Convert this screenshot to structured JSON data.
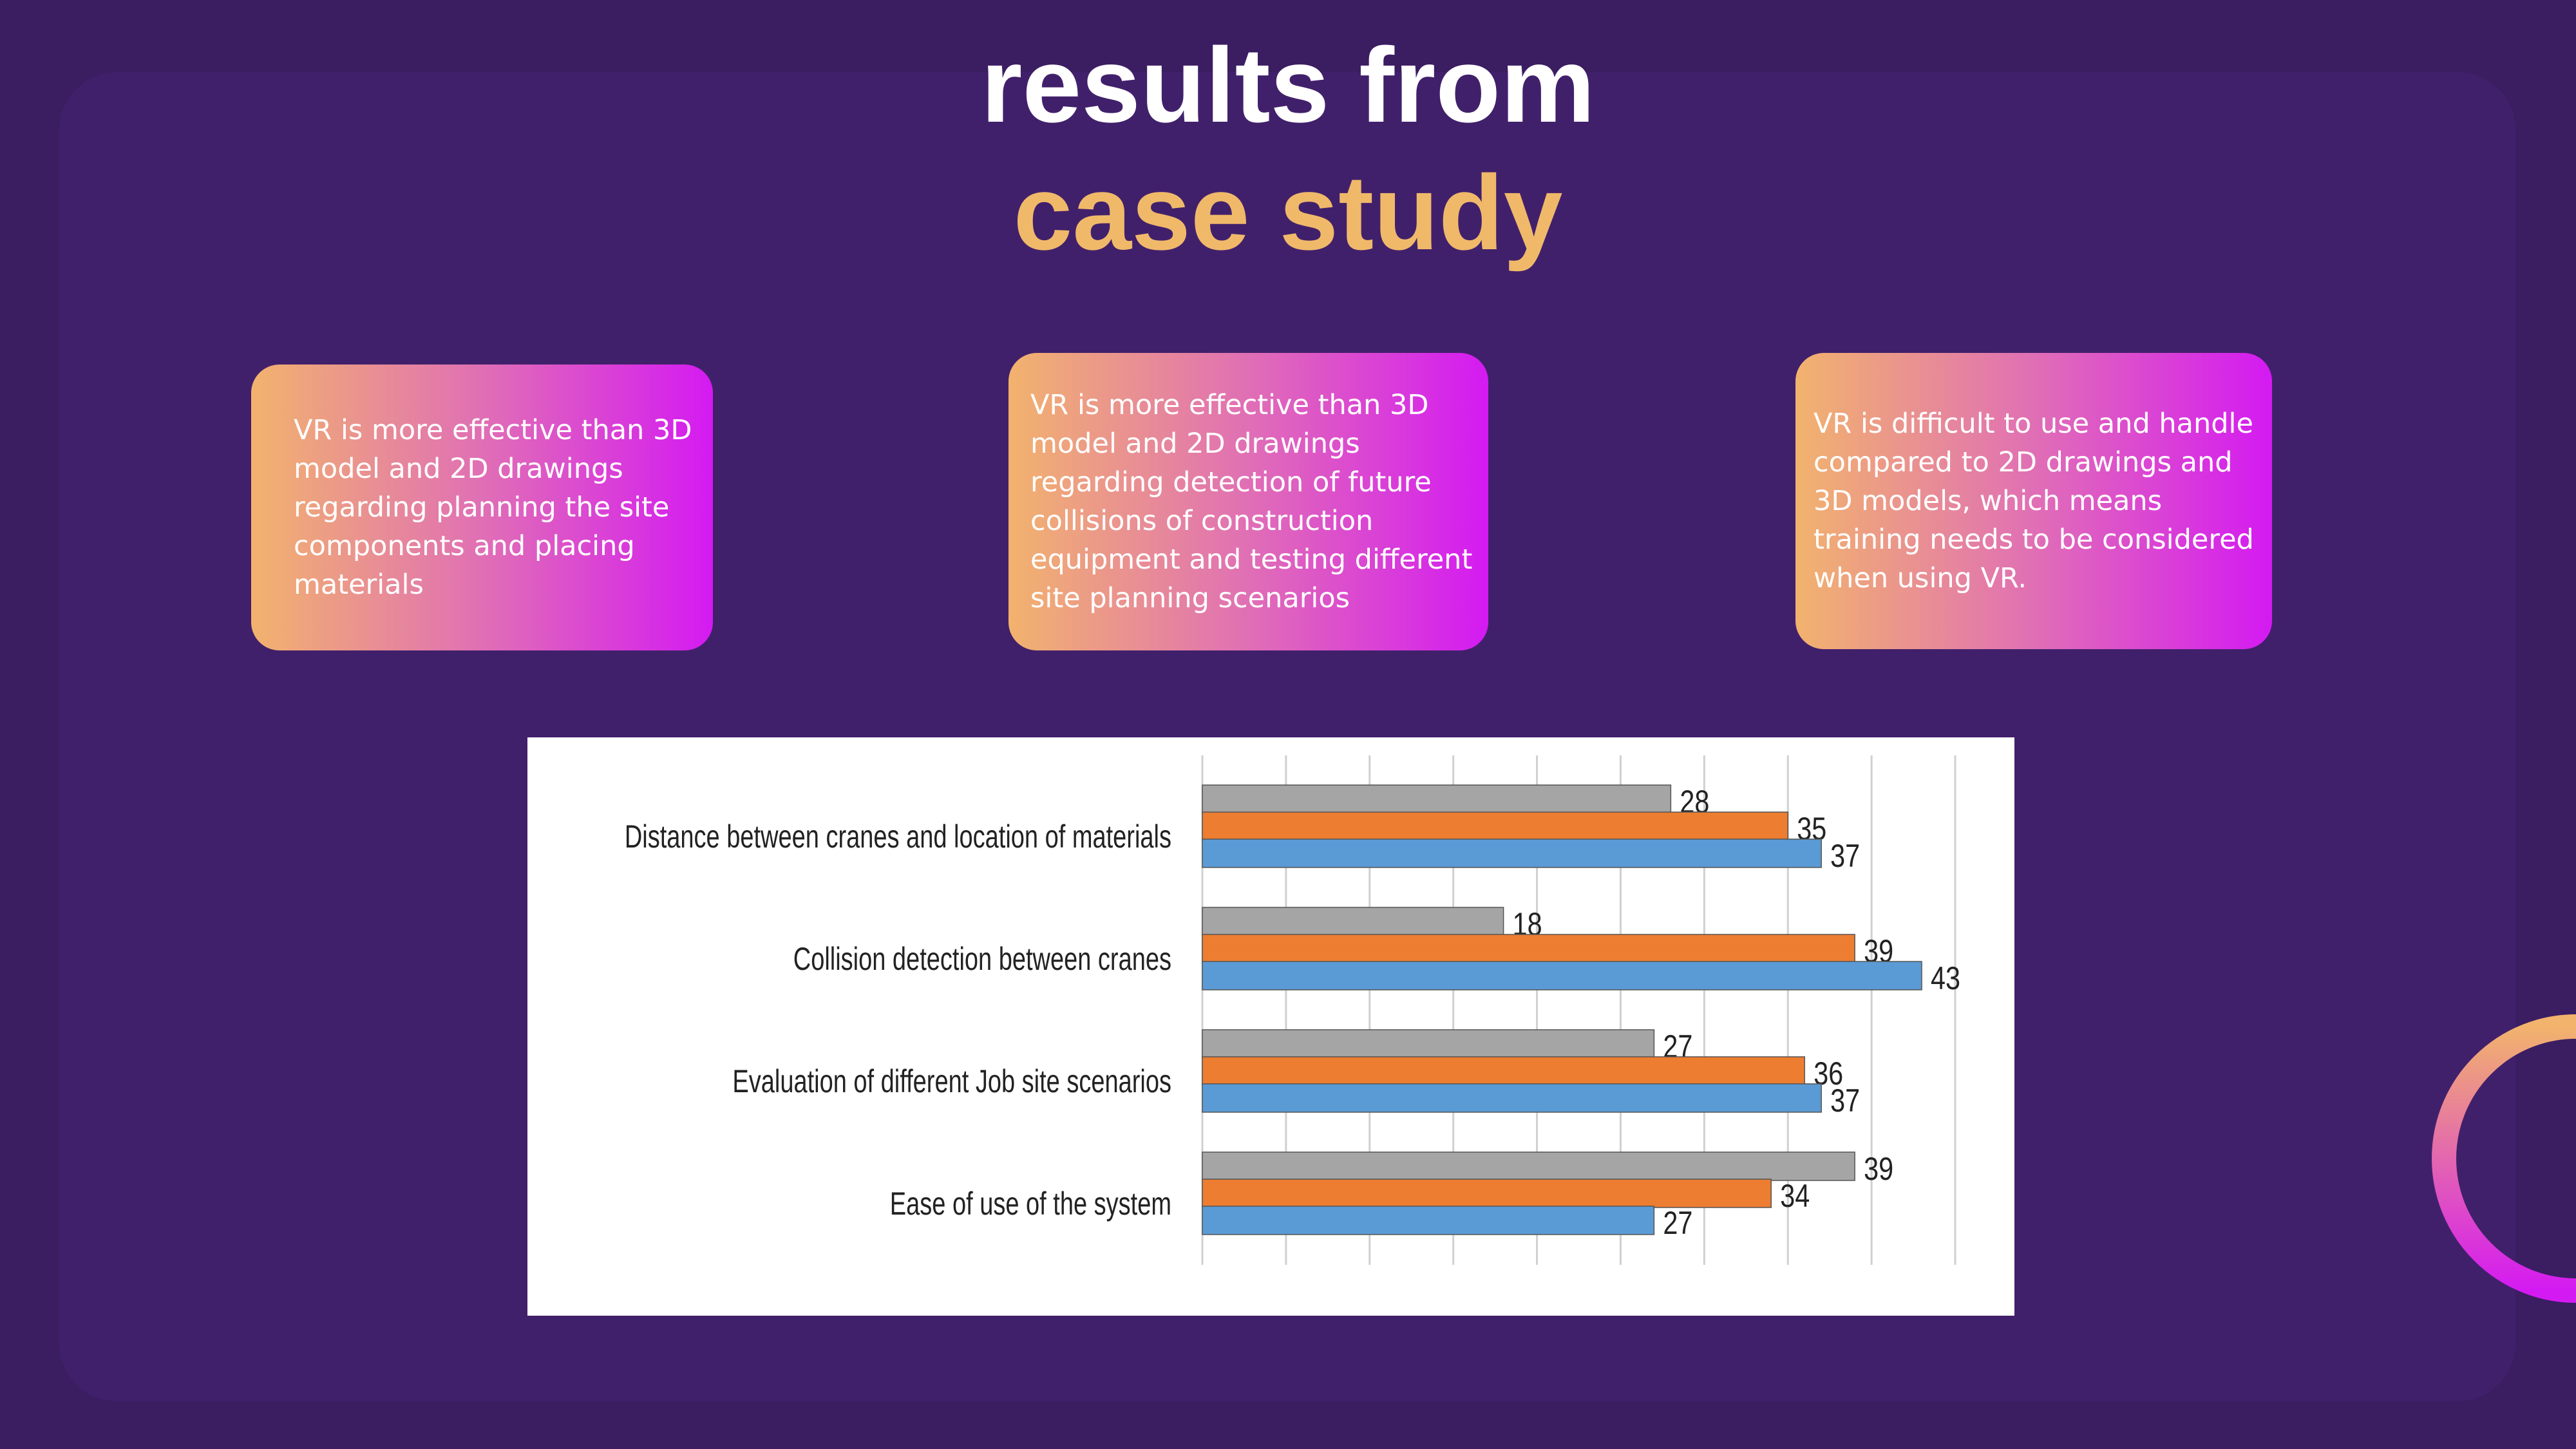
{
  "header": {
    "title_line1": "results from",
    "title_line2": "case study"
  },
  "cards": [
    {
      "text": "VR is more effective than 3D model and 2D drawings regarding planning the site components and placing materials"
    },
    {
      "text": "VR is more effective than 3D model and 2D drawings regarding detection of future collisions of construction equipment and testing different site planning scenarios"
    },
    {
      "text": "VR is difficult to use and handle compared to 2D drawings and 3D models, which means training needs to be considered when using VR."
    }
  ],
  "chart_data": {
    "type": "bar",
    "orientation": "horizontal",
    "categories": [
      "Distance between cranes and location of materials",
      "Collision detection between cranes",
      "Evaluation of different Job site scenarios",
      "Ease of use of the system"
    ],
    "series": [
      {
        "color": "#a5a5a5",
        "values": [
          28,
          18,
          27,
          39
        ]
      },
      {
        "color": "#ed7d31",
        "values": [
          35,
          39,
          36,
          34
        ]
      },
      {
        "color": "#5b9bd5",
        "values": [
          37,
          43,
          37,
          27
        ]
      }
    ],
    "xlim": [
      0,
      45
    ],
    "xticks": [
      0,
      5,
      10,
      15,
      20,
      25,
      30,
      35,
      40,
      45
    ],
    "grid": true
  }
}
